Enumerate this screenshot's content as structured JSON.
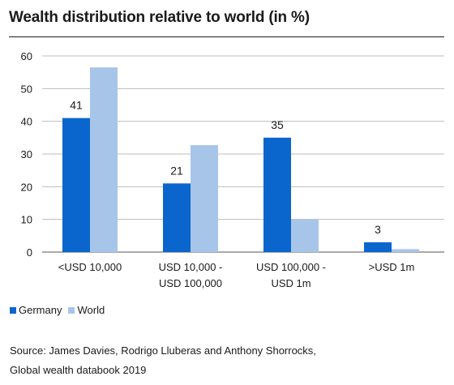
{
  "title": "Wealth distribution relative to world (in %)",
  "source": {
    "line1": "Source: James Davies, Rodrigo Lluberas and Anthony Shorrocks,",
    "line2": "Global wealth databook 2019"
  },
  "colors": {
    "germany": "#0a66cc",
    "world": "#a7c5e8",
    "grid": "#bcbcbc",
    "axis": "#555555"
  },
  "chart_data": {
    "type": "bar",
    "title": "Wealth distribution relative to world (in %)",
    "categories": [
      [
        "<USD 10,000"
      ],
      [
        "USD 10,000 -",
        "USD 100,000"
      ],
      [
        "USD 100,000 -",
        "USD 1m"
      ],
      [
        ">USD 1m"
      ]
    ],
    "series": [
      {
        "name": "Germany",
        "values": [
          41,
          21,
          35,
          3
        ],
        "labels": [
          "41",
          "21",
          "35",
          "3"
        ]
      },
      {
        "name": "World",
        "values": [
          56.5,
          32.7,
          10,
          0.9
        ]
      }
    ],
    "ylim": [
      0,
      60
    ],
    "yticks": [
      0,
      10,
      20,
      30,
      40,
      50,
      60
    ],
    "grid": true,
    "legend": "bottom-left"
  }
}
